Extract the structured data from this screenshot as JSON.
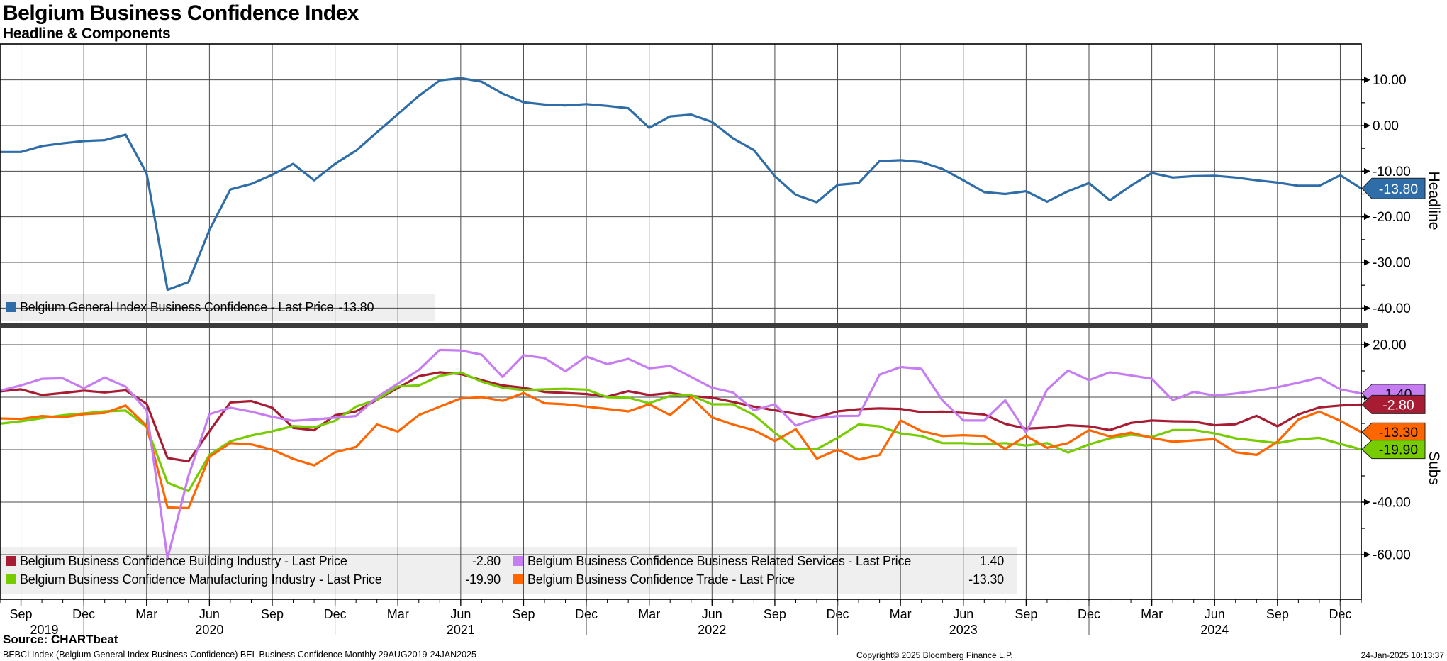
{
  "header": {
    "title": "Belgium Business Confidence Index",
    "subtitle": "Headline & Components"
  },
  "colors": {
    "headline_blue": "#2E6DA8",
    "building_crimson": "#A81C33",
    "manufacturing_green": "#77CC00",
    "services_purple": "#C67DF2",
    "trade_orange": "#FF6600",
    "grid": "#4A4A4A",
    "frame": "#000000",
    "panel_divider": "#3B3B3B",
    "legend_bg": "#EFEFEF",
    "badge_text_light": "#FFFFFF",
    "badge_text_dark": "#000000"
  },
  "top_panel": {
    "axis_title": "Headline",
    "y_tick_labels": [
      "10.00",
      "0.00",
      "-10.00",
      "-20.00",
      "-30.00",
      "-40.00"
    ],
    "badge": {
      "text": "-13.80",
      "color": "#2E6DA8",
      "text_color": "#FFFFFF"
    },
    "legend": {
      "label": "Belgium General Index Business Confidence - Last Price",
      "value": "-13.80"
    }
  },
  "bottom_panel": {
    "axis_title": "Subs",
    "y_tick_labels": [
      "20.00",
      "0.00",
      "-20.00",
      "-40.00",
      "-60.00"
    ],
    "badges": [
      {
        "text": "1.40",
        "color": "#C67DF2",
        "text_color": "#000000"
      },
      {
        "text": "-2.80",
        "color": "#A81C33",
        "text_color": "#FFFFFF"
      },
      {
        "text": "-13.30",
        "color": "#FF6600",
        "text_color": "#000000"
      },
      {
        "text": "-19.90",
        "color": "#77CC00",
        "text_color": "#000000"
      }
    ],
    "legend": [
      {
        "label": "Belgium Business Confidence Building Industry - Last Price",
        "value": "-2.80",
        "color": "#A81C33"
      },
      {
        "label": "Belgium Business Confidence Business Related Services - Last Price",
        "value": "1.40",
        "color": "#C67DF2"
      },
      {
        "label": "Belgium Business Confidence Manufacturing Industry - Last Price",
        "value": "-19.90",
        "color": "#77CC00"
      },
      {
        "label": "Belgium Business Confidence Trade - Last Price",
        "value": "-13.30",
        "color": "#FF6600"
      }
    ]
  },
  "x_axis": {
    "quarter_ticks": [
      {
        "label": "Sep",
        "month": 1
      },
      {
        "label": "Dec",
        "month": 4
      },
      {
        "label": "Mar",
        "month": 7
      },
      {
        "label": "Jun",
        "month": 10
      },
      {
        "label": "Sep",
        "month": 13
      },
      {
        "label": "Dec",
        "month": 16
      },
      {
        "label": "Mar",
        "month": 19
      },
      {
        "label": "Jun",
        "month": 22
      },
      {
        "label": "Sep",
        "month": 25
      },
      {
        "label": "Dec",
        "month": 28
      },
      {
        "label": "Mar",
        "month": 31
      },
      {
        "label": "Jun",
        "month": 34
      },
      {
        "label": "Sep",
        "month": 37
      },
      {
        "label": "Dec",
        "month": 40
      },
      {
        "label": "Mar",
        "month": 43
      },
      {
        "label": "Jun",
        "month": 46
      },
      {
        "label": "Sep",
        "month": 49
      },
      {
        "label": "Dec",
        "month": 52
      },
      {
        "label": "Mar",
        "month": 55
      },
      {
        "label": "Jun",
        "month": 58
      },
      {
        "label": "Sep",
        "month": 61
      },
      {
        "label": "Dec",
        "month": 64
      }
    ],
    "year_labels": [
      {
        "label": "2019",
        "month": 1,
        "dx": 33
      },
      {
        "label": "2020",
        "month": 10,
        "dx": 0
      },
      {
        "label": "2021",
        "month": 22,
        "dx": 0
      },
      {
        "label": "2022",
        "month": 34,
        "dx": 0
      },
      {
        "label": "2023",
        "month": 46,
        "dx": 0
      },
      {
        "label": "2024",
        "month": 58,
        "dx": 0
      }
    ],
    "year_separator_months": [
      4,
      16,
      28,
      40,
      52,
      64
    ]
  },
  "footer": {
    "source": "Source: CHARTbeat",
    "info": "BEBCI Index (Belgium General Index Business Confidence) BEL Business Confidence  Monthly 29AUG2019-24JAN2025",
    "copyright": "Copyright© 2025 Bloomberg Finance L.P.",
    "timestamp": "24-Jan-2025 10:13:37"
  },
  "chart_data": [
    {
      "type": "line",
      "panel": "Headline",
      "title": "Belgium Business Confidence Index - Headline",
      "frequency": "monthly",
      "x": [
        "Aug 2019",
        "Sep 2019",
        "Oct 2019",
        "Nov 2019",
        "Dec 2019",
        "Jan 2020",
        "Feb 2020",
        "Mar 2020",
        "Apr 2020",
        "May 2020",
        "Jun 2020",
        "Jul 2020",
        "Aug 2020",
        "Sep 2020",
        "Oct 2020",
        "Nov 2020",
        "Dec 2020",
        "Jan 2021",
        "Feb 2021",
        "Mar 2021",
        "Apr 2021",
        "May 2021",
        "Jun 2021",
        "Jul 2021",
        "Aug 2021",
        "Sep 2021",
        "Oct 2021",
        "Nov 2021",
        "Dec 2021",
        "Jan 2022",
        "Feb 2022",
        "Mar 2022",
        "Apr 2022",
        "May 2022",
        "Jun 2022",
        "Jul 2022",
        "Aug 2022",
        "Sep 2022",
        "Oct 2022",
        "Nov 2022",
        "Dec 2022",
        "Jan 2023",
        "Feb 2023",
        "Mar 2023",
        "Apr 2023",
        "May 2023",
        "Jun 2023",
        "Jul 2023",
        "Aug 2023",
        "Sep 2023",
        "Oct 2023",
        "Nov 2023",
        "Dec 2023",
        "Jan 2024",
        "Feb 2024",
        "Mar 2024",
        "Apr 2024",
        "May 2024",
        "Jun 2024",
        "Jul 2024",
        "Aug 2024",
        "Sep 2024",
        "Oct 2024",
        "Nov 2024",
        "Dec 2024",
        "Jan 2025"
      ],
      "ylim": [
        -43.5,
        17.9
      ],
      "y_ticks": [
        10,
        0,
        -10,
        -20,
        -30,
        -40
      ],
      "minor_y_ticks": [
        5,
        -5,
        -15,
        -25,
        -35
      ],
      "grid": true,
      "legend_position": "bottom-left",
      "series": [
        {
          "name": "Belgium General Index Business Confidence",
          "last_price": -13.8,
          "color": "#2E6DA8",
          "values": [
            -5.8,
            -5.8,
            -4.5,
            -3.9,
            -3.4,
            -3.2,
            -2.0,
            -10.5,
            -36.0,
            -34.3,
            -22.9,
            -14.0,
            -12.8,
            -10.8,
            -8.4,
            -12.0,
            -8.4,
            -5.5,
            -1.5,
            2.5,
            6.5,
            9.9,
            10.4,
            9.6,
            7.0,
            5.1,
            4.6,
            4.4,
            4.7,
            4.3,
            3.8,
            -0.5,
            2.0,
            2.4,
            0.8,
            -2.8,
            -5.4,
            -11.1,
            -15.2,
            -16.8,
            -13.0,
            -12.6,
            -7.8,
            -7.6,
            -8.0,
            -9.5,
            -12.0,
            -14.6,
            -15.0,
            -14.4,
            -16.7,
            -14.4,
            -12.6,
            -16.4,
            -13.2,
            -10.4,
            -11.4,
            -11.1,
            -11.0,
            -11.4,
            -12.0,
            -12.5,
            -13.2,
            -13.2,
            -10.9,
            -13.8
          ]
        }
      ]
    },
    {
      "type": "line",
      "panel": "Subs",
      "title": "Belgium Business Confidence Index - Components",
      "frequency": "monthly",
      "x": [
        "Aug 2019",
        "Sep 2019",
        "Oct 2019",
        "Nov 2019",
        "Dec 2019",
        "Jan 2020",
        "Feb 2020",
        "Mar 2020",
        "Apr 2020",
        "May 2020",
        "Jun 2020",
        "Jul 2020",
        "Aug 2020",
        "Sep 2020",
        "Oct 2020",
        "Nov 2020",
        "Dec 2020",
        "Jan 2021",
        "Feb 2021",
        "Mar 2021",
        "Apr 2021",
        "May 2021",
        "Jun 2021",
        "Jul 2021",
        "Aug 2021",
        "Sep 2021",
        "Oct 2021",
        "Nov 2021",
        "Dec 2021",
        "Jan 2022",
        "Feb 2022",
        "Mar 2022",
        "Apr 2022",
        "May 2022",
        "Jun 2022",
        "Jul 2022",
        "Aug 2022",
        "Sep 2022",
        "Oct 2022",
        "Nov 2022",
        "Dec 2022",
        "Jan 2023",
        "Feb 2023",
        "Mar 2023",
        "Apr 2023",
        "May 2023",
        "Jun 2023",
        "Jul 2023",
        "Aug 2023",
        "Sep 2023",
        "Oct 2023",
        "Nov 2023",
        "Dec 2023",
        "Jan 2024",
        "Feb 2024",
        "Mar 2024",
        "Apr 2024",
        "May 2024",
        "Jun 2024",
        "Jul 2024",
        "Aug 2024",
        "Sep 2024",
        "Oct 2024",
        "Nov 2024",
        "Dec 2024",
        "Jan 2025"
      ],
      "ylim": [
        -77,
        26.5
      ],
      "y_ticks": [
        20,
        0,
        -20,
        -40,
        -60
      ],
      "minor_y_ticks": [
        10,
        -10,
        -30,
        -50
      ],
      "grid": true,
      "legend_position": "bottom-left",
      "series": [
        {
          "name": "Belgium Business Confidence Building Industry",
          "last_price": -2.8,
          "color": "#A81C33",
          "values": [
            2.2,
            3.0,
            0.8,
            1.6,
            2.5,
            1.8,
            2.6,
            -2.5,
            -23.2,
            -24.5,
            -13.0,
            -2.0,
            -1.5,
            -4.0,
            -11.7,
            -12.6,
            -6.9,
            -5.4,
            -1.0,
            3.5,
            8.0,
            9.5,
            8.8,
            6.5,
            4.5,
            3.6,
            2.0,
            1.6,
            1.2,
            0.2,
            2.3,
            0.8,
            1.6,
            0.4,
            -0.2,
            -1.8,
            -3.6,
            -5.0,
            -6.3,
            -7.7,
            -5.4,
            -4.6,
            -4.3,
            -4.5,
            -5.7,
            -5.5,
            -6.0,
            -6.6,
            -10.2,
            -12.0,
            -11.6,
            -10.7,
            -11.1,
            -12.5,
            -9.8,
            -8.9,
            -9.2,
            -9.3,
            -10.7,
            -10.3,
            -7.1,
            -11.1,
            -6.6,
            -3.9,
            -3.2,
            -2.8
          ]
        },
        {
          "name": "Belgium Business Confidence Manufacturing Industry",
          "last_price": -19.9,
          "color": "#77CC00",
          "values": [
            -10.1,
            -9.2,
            -8.0,
            -6.9,
            -6.2,
            -5.4,
            -5.1,
            -11.4,
            -32.6,
            -35.8,
            -22.0,
            -16.8,
            -14.6,
            -13.0,
            -11.0,
            -11.5,
            -9.0,
            -3.6,
            -0.9,
            4.1,
            4.5,
            8.1,
            9.5,
            5.9,
            3.6,
            2.7,
            3.0,
            3.2,
            2.9,
            0.0,
            -0.2,
            -2.3,
            0.5,
            0.7,
            -2.7,
            -2.7,
            -6.8,
            -13.5,
            -19.8,
            -19.8,
            -15.5,
            -10.4,
            -11.1,
            -13.8,
            -14.8,
            -17.5,
            -17.5,
            -17.9,
            -17.5,
            -18.4,
            -17.5,
            -21.1,
            -18.0,
            -15.7,
            -14.3,
            -15.2,
            -12.5,
            -12.5,
            -13.8,
            -15.7,
            -16.6,
            -17.5,
            -16.1,
            -15.5,
            -17.8,
            -19.9
          ]
        },
        {
          "name": "Belgium Business Confidence Trade",
          "last_price": -13.3,
          "color": "#FF6600",
          "values": [
            -8.1,
            -8.3,
            -7.2,
            -7.7,
            -6.5,
            -6.0,
            -3.2,
            -11.0,
            -42.0,
            -42.3,
            -22.7,
            -17.5,
            -18.0,
            -20.0,
            -23.5,
            -26.0,
            -21.0,
            -19.0,
            -10.4,
            -13.1,
            -6.8,
            -3.6,
            -0.5,
            0.0,
            -1.4,
            1.6,
            -2.3,
            -2.7,
            -3.6,
            -4.5,
            -5.4,
            -2.7,
            -6.8,
            0.0,
            -7.7,
            -10.4,
            -12.6,
            -16.7,
            -12.2,
            -23.4,
            -20.0,
            -23.8,
            -22.0,
            -8.9,
            -12.9,
            -14.8,
            -14.5,
            -14.8,
            -19.7,
            -14.8,
            -19.3,
            -17.5,
            -12.5,
            -15.0,
            -13.5,
            -15.5,
            -17.0,
            -16.5,
            -16.0,
            -21.0,
            -22.0,
            -17.0,
            -8.5,
            -5.5,
            -9.0,
            -13.3
          ]
        },
        {
          "name": "Belgium Business Confidence Business Related Services",
          "last_price": 1.4,
          "color": "#C67DF2",
          "values": [
            2.5,
            4.5,
            7.0,
            7.2,
            3.4,
            7.5,
            4.0,
            -5.0,
            -61.5,
            -30.0,
            -6.5,
            -4.0,
            -5.5,
            -7.5,
            -9.0,
            -8.5,
            -7.8,
            -7.2,
            0.0,
            5.2,
            10.4,
            18.0,
            17.8,
            16.2,
            7.7,
            16.0,
            14.9,
            9.9,
            15.5,
            12.6,
            14.6,
            11.0,
            11.9,
            7.7,
            3.6,
            1.8,
            -5.0,
            -2.7,
            -10.8,
            -8.1,
            -7.2,
            -7.1,
            8.6,
            11.5,
            10.8,
            -1.2,
            -8.9,
            -8.9,
            -1.2,
            -13.4,
            2.9,
            10.1,
            6.5,
            9.5,
            8.3,
            7.0,
            -1.2,
            2.0,
            0.6,
            1.4,
            2.4,
            3.8,
            5.5,
            7.4,
            3.0,
            1.4
          ]
        }
      ]
    }
  ]
}
